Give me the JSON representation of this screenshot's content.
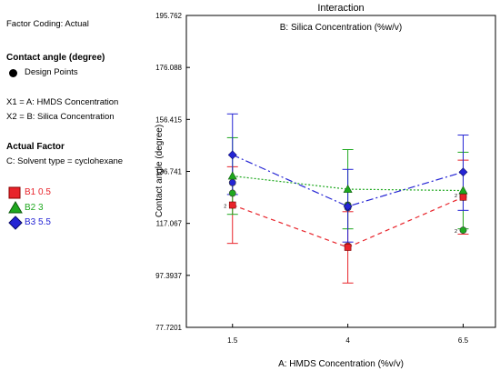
{
  "sidebar": {
    "factor_coding": "Factor Coding: Actual",
    "response_title": "Contact angle (degree)",
    "design_points": "Design Points",
    "x1": "X1 = A: HMDS Concentration",
    "x2": "X2 = B: Silica Concentration",
    "actual_factor_title": "Actual Factor",
    "c_value": "C: Solvent type = cyclohexane",
    "legend": [
      {
        "label": "B1 0.5",
        "color": "#e8232a",
        "marker": "square"
      },
      {
        "label": "B2 3",
        "color": "#1fa81f",
        "marker": "triangle"
      },
      {
        "label": "B3 5.5",
        "color": "#2424d4",
        "marker": "diamond"
      }
    ]
  },
  "chart_data": {
    "type": "line",
    "title": "Interaction",
    "subtitle": "B: Silica Concentration (%w/v)",
    "xlabel": "A: HMDS Concentration (%v/v)",
    "ylabel": "Contact angle (degree)",
    "x": [
      1.5,
      4,
      6.5
    ],
    "x_ticks": [
      "1.5",
      "4",
      "6.5"
    ],
    "y_ticks": [
      "77.7201",
      "97.3937",
      "117.067",
      "136.741",
      "156.415",
      "176.088",
      "195.762"
    ],
    "ylim": [
      77.7201,
      195.762
    ],
    "series": [
      {
        "name": "B1 0.5",
        "color": "#e8232a",
        "marker": "square",
        "dash": "5,4",
        "values": [
          124.0,
          108.0,
          127.0
        ],
        "error_low": [
          109.5,
          94.5,
          113.0
        ],
        "error_high": [
          138.5,
          121.5,
          141.0
        ]
      },
      {
        "name": "B2 3",
        "color": "#1fa81f",
        "marker": "triangle",
        "dash": "2,2",
        "values": [
          135.0,
          130.0,
          129.5
        ],
        "error_low": [
          120.5,
          115.0,
          115.0
        ],
        "error_high": [
          149.5,
          145.0,
          144.0
        ]
      },
      {
        "name": "B3 5.5",
        "color": "#2424d4",
        "marker": "diamond",
        "dash": "8,3,2,3",
        "values": [
          143.0,
          123.5,
          136.5
        ],
        "error_low": [
          128.0,
          110.0,
          122.0
        ],
        "error_high": [
          158.5,
          137.5,
          150.5
        ]
      }
    ],
    "design_points": [
      {
        "x": 1.5,
        "y": 124.0,
        "color": "#e8232a",
        "label": "2"
      },
      {
        "x": 1.5,
        "y": 128.5,
        "color": "#1fa81f"
      },
      {
        "x": 1.5,
        "y": 132.5,
        "color": "#2424d4"
      },
      {
        "x": 4,
        "y": 108.5,
        "color": "#e8232a"
      },
      {
        "x": 4,
        "y": 123.0,
        "color": "#2424d4"
      },
      {
        "x": 4,
        "y": 124.0,
        "color": "#1fa81f"
      },
      {
        "x": 6.5,
        "y": 128.0,
        "color": "#e8232a",
        "label": "2"
      },
      {
        "x": 6.5,
        "y": 127.0,
        "color": "#2424d4"
      },
      {
        "x": 6.5,
        "y": 114.5,
        "color": "#1fa81f",
        "label": "2"
      }
    ]
  }
}
